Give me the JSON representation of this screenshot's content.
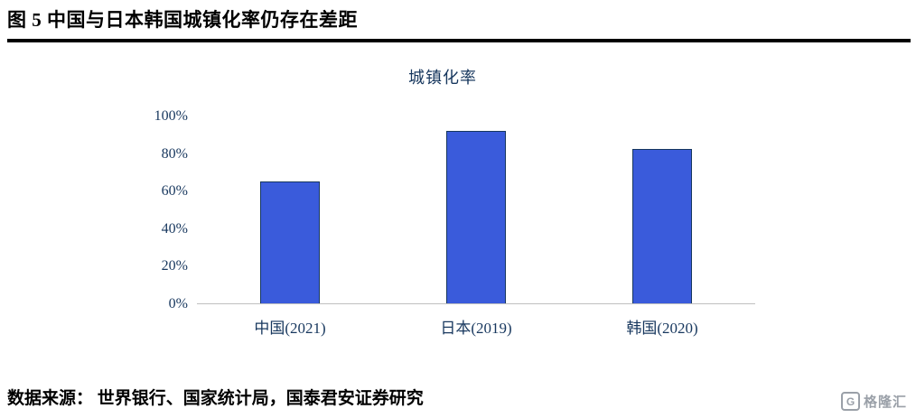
{
  "header": {
    "title": "图 5  中国与日本韩国城镇化率仍存在差距"
  },
  "chart_data": {
    "type": "bar",
    "title": "城镇化率",
    "categories": [
      "中国(2021)",
      "日本(2019)",
      "韩国(2020)"
    ],
    "values": [
      65,
      92,
      82
    ],
    "value_unit": "%",
    "xlabel": "",
    "ylabel": "",
    "ylim": [
      0,
      100
    ],
    "ytick_labels": [
      "0%",
      "20%",
      "40%",
      "60%",
      "80%",
      "100%"
    ],
    "grid": false,
    "legend": false,
    "bar_color": "#3A5BDB",
    "bar_border_color": "#17375E",
    "axis_label_color": "#17375E",
    "baseline_color": "#BFBFBF"
  },
  "footer": {
    "source": "数据来源： 世界银行、国家统计局，国泰君安证券研究",
    "logo_letter": "G",
    "logo_text": "格隆汇"
  }
}
